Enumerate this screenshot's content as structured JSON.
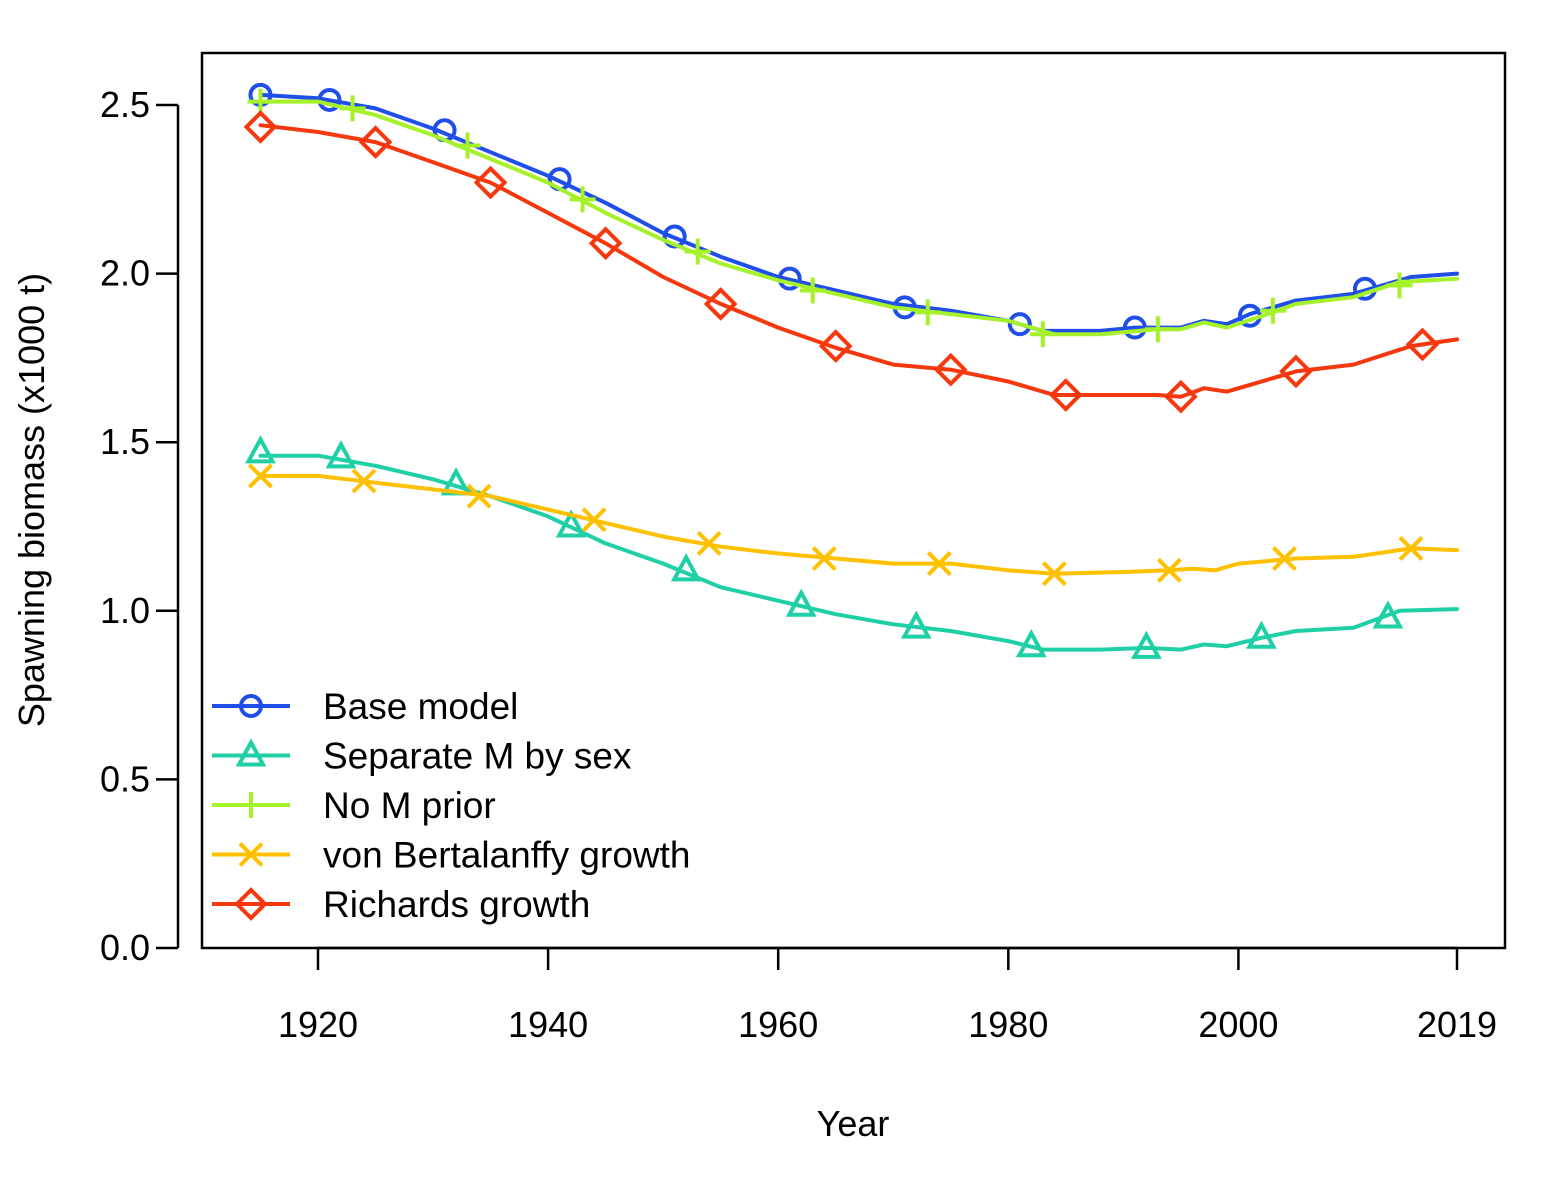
{
  "chart_data": {
    "type": "line",
    "title": "",
    "xlabel": "Year",
    "ylabel": "Spawning biomass (x1000 t)",
    "xlim": [
      1910,
      2020
    ],
    "ylim": [
      0,
      2.65
    ],
    "x_ticks": [
      1920,
      1940,
      1960,
      1980,
      2000,
      2019
    ],
    "y_ticks": [
      0.0,
      0.5,
      1.0,
      1.5,
      2.0,
      2.5
    ],
    "x_tick_labels": [
      "1920",
      "1940",
      "1960",
      "1980",
      "2000",
      "2019"
    ],
    "y_tick_labels": [
      "0.0",
      "0.5",
      "1.0",
      "1.5",
      "2.0",
      "2.5"
    ],
    "grid": false,
    "legend_position": "bottom-left",
    "series": [
      {
        "name": "Base model",
        "color": "#1f4ee8",
        "marker": "circle",
        "points": [
          [
            1915,
            2.53
          ],
          [
            1920,
            2.52
          ],
          [
            1925,
            2.49
          ],
          [
            1930,
            2.43
          ],
          [
            1935,
            2.36
          ],
          [
            1940,
            2.29
          ],
          [
            1945,
            2.21
          ],
          [
            1950,
            2.12
          ],
          [
            1955,
            2.05
          ],
          [
            1960,
            1.99
          ],
          [
            1965,
            1.95
          ],
          [
            1970,
            1.91
          ],
          [
            1975,
            1.89
          ],
          [
            1980,
            1.86
          ],
          [
            1983,
            1.83
          ],
          [
            1988,
            1.83
          ],
          [
            1991,
            1.84
          ],
          [
            1995,
            1.84
          ],
          [
            1997,
            1.86
          ],
          [
            1999,
            1.85
          ],
          [
            2001,
            1.88
          ],
          [
            2005,
            1.92
          ],
          [
            2010,
            1.94
          ],
          [
            2015,
            1.99
          ],
          [
            2019,
            2.0
          ]
        ],
        "markers": [
          [
            1915,
            2.53
          ],
          [
            1921,
            2.515
          ],
          [
            1931,
            2.425
          ],
          [
            1941,
            2.28
          ],
          [
            1951,
            2.11
          ],
          [
            1961,
            1.985
          ],
          [
            1971,
            1.9
          ],
          [
            1981,
            1.85
          ],
          [
            1991,
            1.84
          ],
          [
            2001,
            1.875
          ],
          [
            2011,
            1.955
          ]
        ]
      },
      {
        "name": "Separate M by sex",
        "color": "#1fcfa5",
        "marker": "triangle",
        "points": [
          [
            1915,
            1.46
          ],
          [
            1920,
            1.46
          ],
          [
            1925,
            1.43
          ],
          [
            1930,
            1.39
          ],
          [
            1935,
            1.34
          ],
          [
            1940,
            1.28
          ],
          [
            1945,
            1.2
          ],
          [
            1950,
            1.14
          ],
          [
            1955,
            1.07
          ],
          [
            1960,
            1.03
          ],
          [
            1965,
            0.99
          ],
          [
            1970,
            0.96
          ],
          [
            1975,
            0.94
          ],
          [
            1980,
            0.91
          ],
          [
            1983,
            0.885
          ],
          [
            1988,
            0.885
          ],
          [
            1992,
            0.89
          ],
          [
            1995,
            0.885
          ],
          [
            1997,
            0.9
          ],
          [
            1999,
            0.895
          ],
          [
            2002,
            0.92
          ],
          [
            2005,
            0.94
          ],
          [
            2010,
            0.95
          ],
          [
            2014,
            1.0
          ],
          [
            2019,
            1.005
          ]
        ],
        "markers": [
          [
            1915,
            1.47
          ],
          [
            1922,
            1.455
          ],
          [
            1932,
            1.375
          ],
          [
            1942,
            1.25
          ],
          [
            1952,
            1.12
          ],
          [
            1962,
            1.015
          ],
          [
            1972,
            0.95
          ],
          [
            1982,
            0.895
          ],
          [
            1992,
            0.89
          ],
          [
            2002,
            0.92
          ],
          [
            2013,
            0.98
          ]
        ]
      },
      {
        "name": "No M prior",
        "color": "#a6f22a",
        "marker": "plus",
        "points": [
          [
            1915,
            2.51
          ],
          [
            1920,
            2.51
          ],
          [
            1925,
            2.47
          ],
          [
            1930,
            2.41
          ],
          [
            1935,
            2.34
          ],
          [
            1940,
            2.27
          ],
          [
            1945,
            2.18
          ],
          [
            1950,
            2.1
          ],
          [
            1955,
            2.03
          ],
          [
            1960,
            1.98
          ],
          [
            1965,
            1.94
          ],
          [
            1970,
            1.9
          ],
          [
            1975,
            1.88
          ],
          [
            1980,
            1.86
          ],
          [
            1984,
            1.82
          ],
          [
            1988,
            1.82
          ],
          [
            1993,
            1.835
          ],
          [
            1995,
            1.835
          ],
          [
            1997,
            1.855
          ],
          [
            1999,
            1.84
          ],
          [
            2003,
            1.885
          ],
          [
            2005,
            1.91
          ],
          [
            2010,
            1.93
          ],
          [
            2014,
            1.975
          ],
          [
            2019,
            1.985
          ]
        ],
        "markers": [
          [
            1915,
            2.51
          ],
          [
            1923,
            2.49
          ],
          [
            1933,
            2.38
          ],
          [
            1943,
            2.22
          ],
          [
            1953,
            2.065
          ],
          [
            1963,
            1.95
          ],
          [
            1973,
            1.885
          ],
          [
            1983,
            1.82
          ],
          [
            1993,
            1.835
          ],
          [
            2003,
            1.89
          ],
          [
            2014,
            1.965
          ]
        ]
      },
      {
        "name": "von Bertalanffy growth",
        "color": "#ffc000",
        "marker": "x",
        "points": [
          [
            1915,
            1.4
          ],
          [
            1920,
            1.4
          ],
          [
            1925,
            1.38
          ],
          [
            1930,
            1.36
          ],
          [
            1935,
            1.34
          ],
          [
            1940,
            1.3
          ],
          [
            1945,
            1.26
          ],
          [
            1950,
            1.22
          ],
          [
            1955,
            1.19
          ],
          [
            1960,
            1.17
          ],
          [
            1965,
            1.155
          ],
          [
            1970,
            1.14
          ],
          [
            1975,
            1.14
          ],
          [
            1980,
            1.12
          ],
          [
            1984,
            1.11
          ],
          [
            1990,
            1.115
          ],
          [
            1994,
            1.12
          ],
          [
            1996,
            1.125
          ],
          [
            1998,
            1.12
          ],
          [
            2000,
            1.14
          ],
          [
            2005,
            1.155
          ],
          [
            2010,
            1.16
          ],
          [
            2015,
            1.185
          ],
          [
            2019,
            1.18
          ]
        ],
        "markers": [
          [
            1915,
            1.4
          ],
          [
            1924,
            1.385
          ],
          [
            1934,
            1.34
          ],
          [
            1944,
            1.27
          ],
          [
            1954,
            1.2
          ],
          [
            1964,
            1.155
          ],
          [
            1974,
            1.14
          ],
          [
            1984,
            1.11
          ],
          [
            1994,
            1.12
          ],
          [
            2004,
            1.155
          ],
          [
            2015,
            1.185
          ]
        ]
      },
      {
        "name": "Richards growth",
        "color": "#f5380e",
        "marker": "diamond",
        "points": [
          [
            1915,
            2.44
          ],
          [
            1920,
            2.42
          ],
          [
            1925,
            2.39
          ],
          [
            1930,
            2.33
          ],
          [
            1935,
            2.27
          ],
          [
            1940,
            2.18
          ],
          [
            1945,
            2.09
          ],
          [
            1950,
            1.99
          ],
          [
            1955,
            1.91
          ],
          [
            1960,
            1.84
          ],
          [
            1965,
            1.78
          ],
          [
            1970,
            1.73
          ],
          [
            1975,
            1.715
          ],
          [
            1980,
            1.68
          ],
          [
            1984,
            1.64
          ],
          [
            1988,
            1.64
          ],
          [
            1993,
            1.64
          ],
          [
            1995,
            1.635
          ],
          [
            1997,
            1.66
          ],
          [
            1999,
            1.65
          ],
          [
            2001,
            1.67
          ],
          [
            2005,
            1.71
          ],
          [
            2010,
            1.73
          ],
          [
            2015,
            1.785
          ],
          [
            2019,
            1.805
          ]
        ],
        "markers": [
          [
            1915,
            2.435
          ],
          [
            1925,
            2.39
          ],
          [
            1935,
            2.27
          ],
          [
            1945,
            2.09
          ],
          [
            1955,
            1.91
          ],
          [
            1965,
            1.785
          ],
          [
            1975,
            1.715
          ],
          [
            1985,
            1.64
          ],
          [
            1995,
            1.635
          ],
          [
            2005,
            1.71
          ],
          [
            2016,
            1.79
          ]
        ]
      }
    ]
  }
}
